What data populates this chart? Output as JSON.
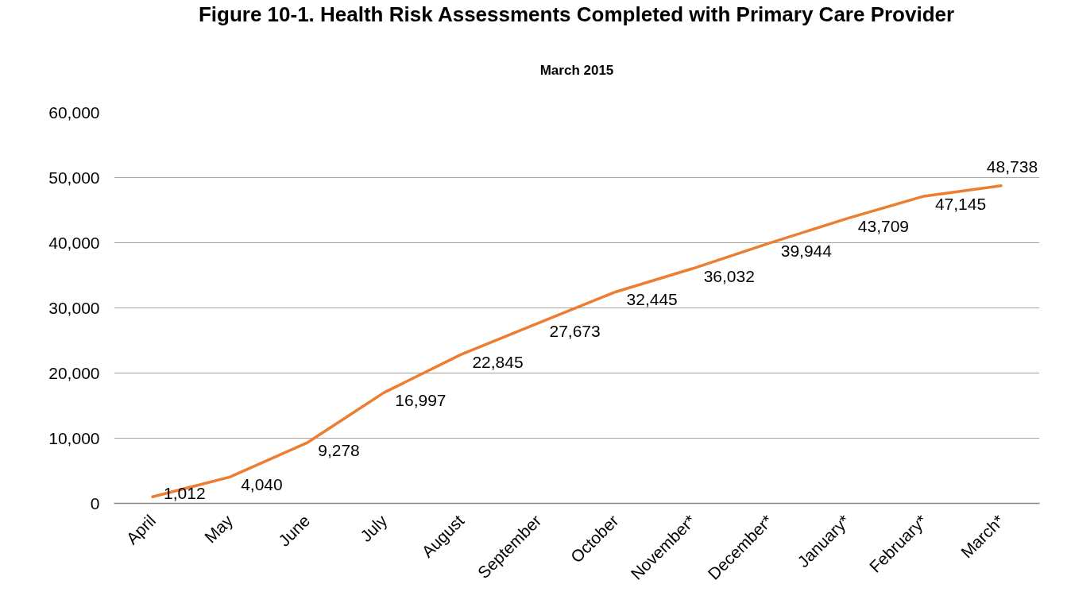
{
  "chart_data": {
    "type": "line",
    "title": "Figure 10-1. Health Risk Assessments Completed with Primary Care Provider",
    "subtitle": "March 2015",
    "categories": [
      "April",
      "May",
      "June",
      "July",
      "August",
      "September",
      "October",
      "November*",
      "December*",
      "January*",
      "February*",
      "March*"
    ],
    "series": [
      {
        "color": "#ed7d31",
        "values": [
          1012,
          4040,
          9278,
          16997,
          22845,
          27673,
          32445,
          36032,
          39944,
          43709,
          47145,
          48738
        ],
        "value_labels": [
          "1,012",
          "4,040",
          "9,278",
          "16,997",
          "22,845",
          "27,673",
          "32,445",
          "36,032",
          "39,944",
          "43,709",
          "47,145",
          "48,738"
        ]
      }
    ],
    "ylim": [
      0,
      60000
    ],
    "yticks": [
      0,
      {
        "value": 10000,
        "label": "10,000"
      },
      {
        "value": 20000,
        "label": "20,000"
      },
      {
        "value": 30000,
        "label": "30,000"
      },
      {
        "value": 40000,
        "label": "40,000"
      },
      {
        "value": 50000,
        "label": "50,000"
      },
      {
        "value": 60000,
        "label": "60,000"
      }
    ],
    "grid": "y"
  }
}
